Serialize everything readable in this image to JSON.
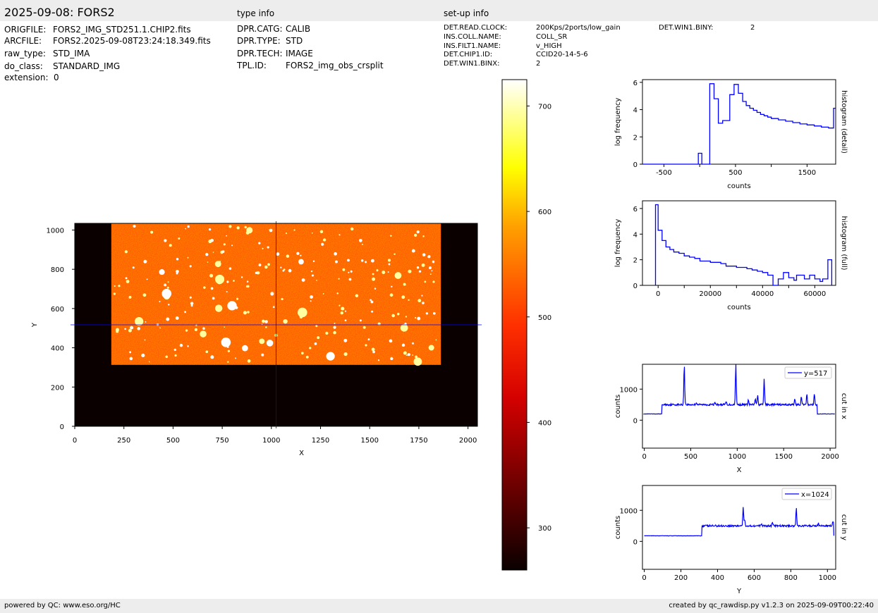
{
  "header": {
    "title": "2025-09-08: FORS2",
    "type_info_label": "type info",
    "setup_info_label": "set-up info"
  },
  "file_info": {
    "keys": [
      "ORIGFILE:",
      "ARCFILE:",
      "raw_type:",
      "do_class:",
      "extension:"
    ],
    "values": [
      "FORS2_IMG_STD251.1.CHIP2.fits",
      "FORS2.2025-09-08T23:24:18.349.fits",
      "STD_IMA",
      "STANDARD_IMG",
      "0"
    ]
  },
  "type_info": {
    "keys": [
      "DPR.CATG:",
      "DPR.TYPE:",
      "DPR.TECH:",
      "TPL.ID:"
    ],
    "values": [
      "CALIB",
      "STD",
      "IMAGE",
      "FORS2_img_obs_crsplit"
    ]
  },
  "setup_info": {
    "keys": [
      "DET.READ.CLOCK:",
      "INS.COLL.NAME:",
      "INS.FILT1.NAME:",
      "DET.CHIP1.ID:",
      "DET.WIN1.BINX:"
    ],
    "values": [
      "200Kps/2ports/low_gain",
      "COLL_SR",
      "v_HIGH",
      "CCID20-14-5-6",
      "2"
    ],
    "extra_key": "DET.WIN1.BINY:",
    "extra_value": "2"
  },
  "footer": {
    "left": "powered by QC: www.eso.org/HC",
    "right": "created by qc_rawdisp.py v1.2.3 on 2025-09-09T00:22:40"
  },
  "colors": {
    "bar_bg": "#ededed",
    "line": "#0000ff",
    "axis": "#000000",
    "image_bg": "#0a0000"
  },
  "chart_data": [
    {
      "type": "heatmap",
      "name": "image",
      "xlabel": "X",
      "ylabel": "Y",
      "xlim": [
        0,
        2048
      ],
      "ylim": [
        0,
        1034
      ],
      "xticks": [
        0,
        250,
        500,
        750,
        1000,
        1250,
        1500,
        1750,
        2000
      ],
      "yticks": [
        0,
        200,
        400,
        600,
        800,
        1000
      ],
      "data_region": {
        "x": [
          186,
          1862
        ],
        "y": [
          313,
          1034
        ]
      },
      "crosshair": {
        "x": 1024,
        "y": 517
      },
      "colormap": "hot",
      "colorbar": {
        "range": [
          260,
          725
        ],
        "ticks": [
          300,
          400,
          500,
          600,
          700
        ]
      }
    },
    {
      "type": "line",
      "name": "histogram (detail)",
      "xlabel": "counts",
      "ylabel": "log frequency",
      "xlim": [
        -800,
        1900
      ],
      "ylim": [
        0,
        6.2
      ],
      "xticks": [
        -500,
        500,
        1500
      ],
      "xticks_minor": [
        0,
        1000
      ],
      "yticks": [
        0,
        2,
        4,
        6
      ],
      "step": true,
      "x": [
        -800,
        -20,
        -20,
        30,
        30,
        140,
        140,
        200,
        200,
        260,
        260,
        320,
        320,
        420,
        420,
        480,
        480,
        540,
        540,
        600,
        600,
        650,
        650,
        700,
        700,
        750,
        750,
        800,
        800,
        850,
        850,
        900,
        900,
        950,
        950,
        1000,
        1000,
        1100,
        1100,
        1200,
        1200,
        1300,
        1300,
        1400,
        1400,
        1500,
        1500,
        1600,
        1600,
        1700,
        1700,
        1800,
        1800,
        1870,
        1870,
        1900
      ],
      "y": [
        0,
        0,
        0.8,
        0.8,
        0,
        0,
        5.9,
        5.9,
        4.8,
        4.8,
        3.0,
        3.0,
        3.2,
        3.2,
        5.1,
        5.1,
        5.85,
        5.85,
        5.2,
        5.2,
        4.6,
        4.6,
        4.3,
        4.3,
        4.1,
        4.1,
        3.95,
        3.95,
        3.8,
        3.8,
        3.65,
        3.65,
        3.55,
        3.55,
        3.45,
        3.45,
        3.35,
        3.35,
        3.25,
        3.25,
        3.15,
        3.15,
        3.05,
        3.05,
        2.95,
        2.95,
        2.88,
        2.88,
        2.8,
        2.8,
        2.72,
        2.72,
        2.65,
        2.65,
        4.1,
        4.1
      ],
      "label": "histogram (detail)"
    },
    {
      "type": "line",
      "name": "histogram (full)",
      "xlabel": "counts",
      "ylabel": "log frequency",
      "xlim": [
        -6000,
        68000
      ],
      "ylim": [
        0,
        6.6
      ],
      "xticks": [
        0,
        20000,
        40000,
        60000
      ],
      "xticks_minor": [
        10000,
        30000,
        50000
      ],
      "yticks": [
        0,
        2,
        4,
        6
      ],
      "step": true,
      "x": [
        -1000,
        -1000,
        0,
        0,
        1500,
        1500,
        3000,
        3000,
        4500,
        4500,
        6000,
        6000,
        8000,
        8000,
        10000,
        10000,
        12000,
        12000,
        14000,
        14000,
        16000,
        16000,
        20000,
        20000,
        24000,
        24000,
        26000,
        26000,
        30000,
        30000,
        34000,
        34000,
        36000,
        36000,
        38000,
        38000,
        40000,
        40000,
        42000,
        42000,
        44000,
        44000,
        46000,
        46000,
        48000,
        48000,
        50000,
        50000,
        52000,
        52000,
        53000,
        53000,
        56000,
        56000,
        58000,
        58000,
        60000,
        60000,
        62000,
        62000,
        63000,
        63000,
        65000,
        65000,
        66500,
        66500
      ],
      "y": [
        0,
        6.3,
        6.3,
        4.3,
        4.3,
        3.5,
        3.5,
        3.0,
        3.0,
        2.8,
        2.8,
        2.6,
        2.6,
        2.5,
        2.5,
        2.3,
        2.3,
        2.2,
        2.2,
        2.1,
        2.1,
        1.9,
        1.9,
        1.8,
        1.8,
        1.7,
        1.7,
        1.5,
        1.5,
        1.4,
        1.4,
        1.3,
        1.3,
        1.2,
        1.2,
        1.1,
        1.1,
        1.0,
        1.0,
        0.8,
        0.8,
        0.0,
        0.0,
        0.5,
        0.5,
        1.0,
        1.0,
        0.6,
        0.6,
        0.4,
        0.4,
        0.8,
        0.8,
        0.5,
        0.5,
        0.8,
        0.8,
        0.5,
        0.5,
        0.3,
        0.3,
        0.5,
        0.5,
        2.0,
        2.0,
        0
      ],
      "label": "histogram (full)"
    },
    {
      "type": "line",
      "name": "cut in x",
      "xlabel": "X",
      "ylabel": "counts",
      "xlim": [
        -20,
        2060
      ],
      "ylim": [
        -900,
        1800
      ],
      "xticks": [
        0,
        500,
        1000,
        1500,
        2000
      ],
      "yticks": [
        0,
        1000
      ],
      "baseline": 500,
      "outside_value": 200,
      "data_range": [
        190,
        1860
      ],
      "peaks": [
        {
          "x": 430,
          "y": 1800
        },
        {
          "x": 985,
          "y": 1800
        },
        {
          "x": 1290,
          "y": 1350
        },
        {
          "x": 1195,
          "y": 700
        },
        {
          "x": 1220,
          "y": 800
        },
        {
          "x": 1120,
          "y": 650
        },
        {
          "x": 1620,
          "y": 700
        },
        {
          "x": 1690,
          "y": 750
        },
        {
          "x": 1750,
          "y": 850
        },
        {
          "x": 1830,
          "y": 850
        },
        {
          "x": 760,
          "y": 600
        },
        {
          "x": 880,
          "y": 600
        },
        {
          "x": 560,
          "y": 580
        }
      ],
      "legend": "y=517",
      "label": "cut in x"
    },
    {
      "type": "line",
      "name": "cut in y",
      "xlabel": "Y",
      "ylabel": "counts",
      "xlim": [
        -10,
        1045
      ],
      "ylim": [
        -900,
        1800
      ],
      "xticks": [
        0,
        200,
        400,
        600,
        800,
        1000
      ],
      "yticks": [
        0,
        1000
      ],
      "baseline": 500,
      "outside_value": 180,
      "data_range": [
        313,
        1034
      ],
      "peaks": [
        {
          "x": 540,
          "y": 1080
        },
        {
          "x": 548,
          "y": 700
        },
        {
          "x": 700,
          "y": 620
        },
        {
          "x": 830,
          "y": 1050
        },
        {
          "x": 640,
          "y": 580
        },
        {
          "x": 950,
          "y": 600
        },
        {
          "x": 1030,
          "y": 650
        }
      ],
      "legend": "x=1024",
      "label": "cut in y"
    }
  ]
}
